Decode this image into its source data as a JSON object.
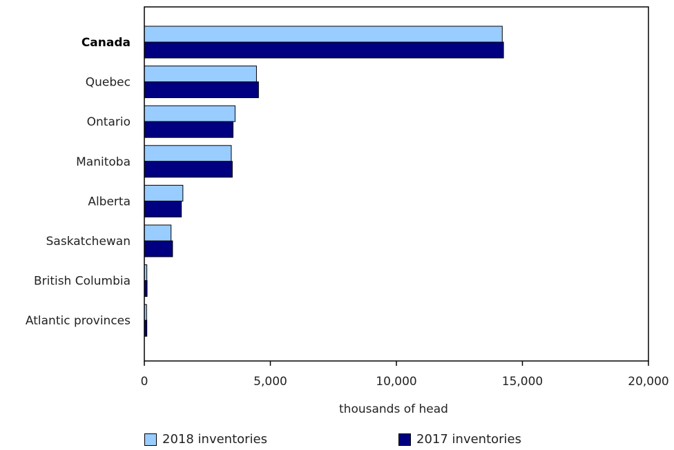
{
  "chart_data": {
    "type": "bar",
    "orientation": "horizontal",
    "categories": [
      "Canada",
      "Quebec",
      "Ontario",
      "Manitoba",
      "Alberta",
      "Saskatchewan",
      "British Columbia",
      "Atlantic provinces"
    ],
    "bold_categories": [
      "Canada"
    ],
    "series": [
      {
        "name": "2018 inventories",
        "color": "#99ccff",
        "values": [
          14200,
          4450,
          3600,
          3450,
          1530,
          1060,
          100,
          90
        ]
      },
      {
        "name": "2017 inventories",
        "color": "#000080",
        "values": [
          14250,
          4530,
          3520,
          3490,
          1470,
          1120,
          110,
          100
        ]
      }
    ],
    "xlabel": "thousands of head",
    "xlim": [
      0,
      20000
    ],
    "xticks": [
      0,
      5000,
      10000,
      15000,
      20000
    ],
    "xtick_labels": [
      "0",
      "5,000",
      "10,000",
      "15,000",
      "20,000"
    ],
    "grid": false,
    "legend_position": "bottom"
  }
}
